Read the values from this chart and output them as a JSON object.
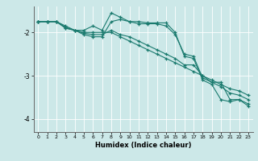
{
  "xlabel": "Humidex (Indice chaleur)",
  "bg_color": "#cce8e8",
  "line_color": "#1a7a6e",
  "grid_color": "#ffffff",
  "xlim": [
    -0.5,
    23.5
  ],
  "ylim": [
    -4.3,
    -1.4
  ],
  "yticks": [
    -4,
    -3,
    -2
  ],
  "xticks": [
    0,
    1,
    2,
    3,
    4,
    5,
    6,
    7,
    8,
    9,
    10,
    11,
    12,
    13,
    14,
    15,
    16,
    17,
    18,
    19,
    20,
    21,
    22,
    23
  ],
  "lines": [
    [
      -1.75,
      -1.75,
      -1.75,
      -1.9,
      -1.95,
      -1.95,
      -1.85,
      -1.95,
      -1.55,
      -1.65,
      -1.75,
      -1.8,
      -1.8,
      -1.8,
      -1.85,
      -2.05,
      -2.5,
      -2.55,
      -3.05,
      -3.15,
      -3.15,
      -3.55,
      -3.55,
      -3.7
    ],
    [
      -1.75,
      -1.75,
      -1.75,
      -1.85,
      -1.95,
      -2.0,
      -2.0,
      -2.0,
      -2.0,
      -2.1,
      -2.2,
      -2.3,
      -2.4,
      -2.5,
      -2.6,
      -2.7,
      -2.8,
      -2.9,
      -3.0,
      -3.1,
      -3.2,
      -3.3,
      -3.35,
      -3.45
    ],
    [
      -1.75,
      -1.75,
      -1.75,
      -1.9,
      -1.95,
      -2.05,
      -2.1,
      -2.1,
      -1.75,
      -1.7,
      -1.75,
      -1.75,
      -1.78,
      -1.78,
      -1.78,
      -2.0,
      -2.55,
      -2.6,
      -3.1,
      -3.2,
      -3.55,
      -3.6,
      -3.55,
      -3.65
    ],
    [
      -1.75,
      -1.75,
      -1.75,
      -1.88,
      -1.95,
      -2.02,
      -2.05,
      -2.05,
      -1.95,
      -2.05,
      -2.1,
      -2.2,
      -2.3,
      -2.4,
      -2.5,
      -2.6,
      -2.75,
      -2.75,
      -3.0,
      -3.15,
      -3.25,
      -3.4,
      -3.45,
      -3.55
    ]
  ]
}
